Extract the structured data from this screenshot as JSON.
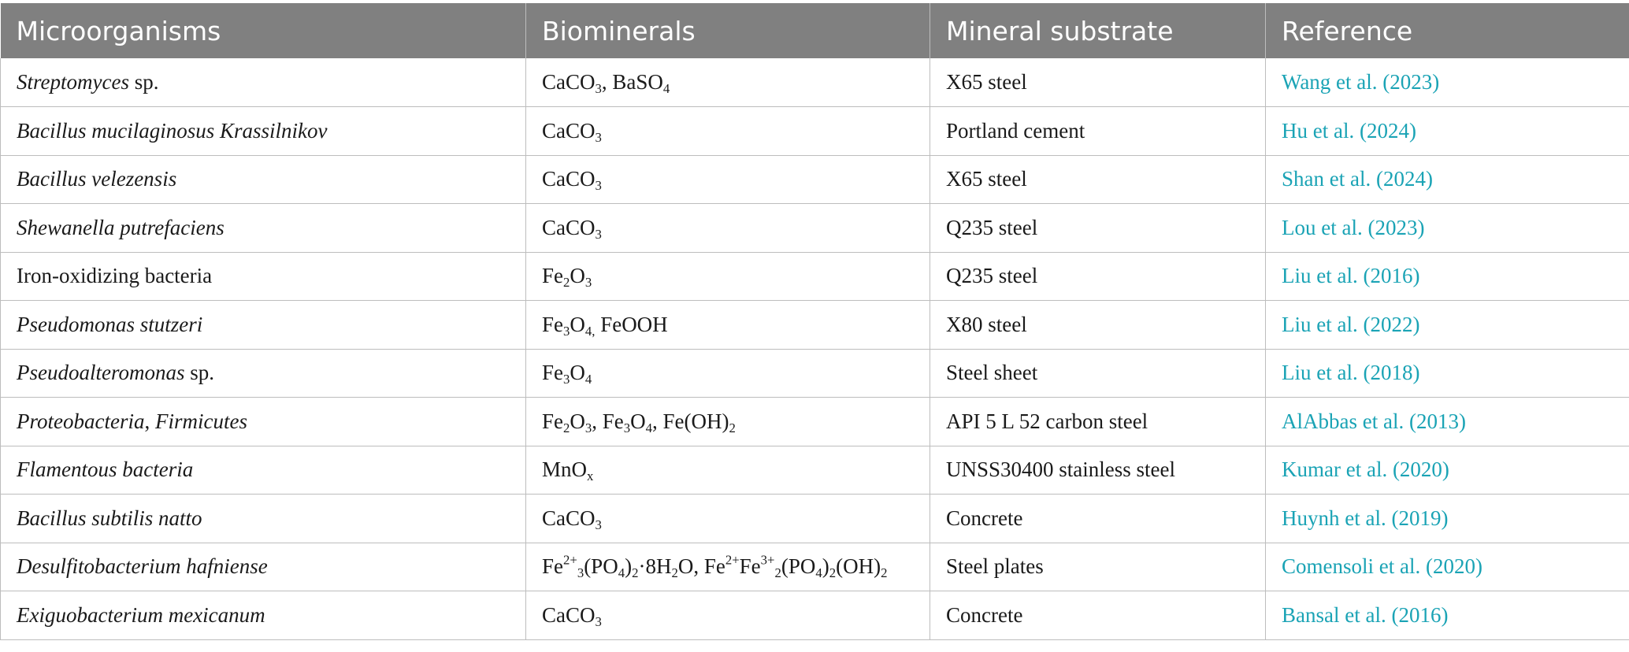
{
  "table": {
    "headers": [
      "Microorganisms",
      "Biominerals",
      "Mineral substrate",
      "Reference"
    ],
    "rows": [
      {
        "organism": [
          {
            "t": "Streptomyces",
            "i": true
          },
          {
            "t": " sp.",
            "i": false
          }
        ],
        "biominerals": [
          {
            "t": "CaCO"
          },
          {
            "t": "3",
            "s": "sub"
          },
          {
            "t": ", BaSO"
          },
          {
            "t": "4",
            "s": "sub"
          }
        ],
        "substrate": "X65 steel",
        "reference": "Wang et al. (2023)"
      },
      {
        "organism": [
          {
            "t": "Bacillus mucilaginosus Krassilnikov",
            "i": true
          }
        ],
        "biominerals": [
          {
            "t": "CaCO"
          },
          {
            "t": "3",
            "s": "sub"
          }
        ],
        "substrate": "Portland cement",
        "reference": "Hu et al. (2024)"
      },
      {
        "organism": [
          {
            "t": "Bacillus velezensis",
            "i": true
          }
        ],
        "biominerals": [
          {
            "t": "CaCO"
          },
          {
            "t": "3",
            "s": "sub"
          }
        ],
        "substrate": "X65 steel",
        "reference": "Shan et al. (2024)"
      },
      {
        "organism": [
          {
            "t": "Shewanella putrefaciens",
            "i": true
          }
        ],
        "biominerals": [
          {
            "t": "CaCO"
          },
          {
            "t": "3",
            "s": "sub"
          }
        ],
        "substrate": "Q235 steel",
        "reference": "Lou et al. (2023)"
      },
      {
        "organism": [
          {
            "t": "Iron-oxidizing bacteria",
            "i": false
          }
        ],
        "biominerals": [
          {
            "t": "Fe"
          },
          {
            "t": "2",
            "s": "sub"
          },
          {
            "t": "O"
          },
          {
            "t": "3",
            "s": "sub"
          }
        ],
        "substrate": "Q235 steel",
        "reference": "Liu et al. (2016)"
      },
      {
        "organism": [
          {
            "t": "Pseudomonas stutzeri",
            "i": true
          }
        ],
        "biominerals": [
          {
            "t": "Fe"
          },
          {
            "t": "3",
            "s": "sub"
          },
          {
            "t": "O"
          },
          {
            "t": "4,",
            "s": "sub"
          },
          {
            "t": " FeOOH"
          }
        ],
        "substrate": "X80 steel",
        "reference": "Liu et al. (2022)"
      },
      {
        "organism": [
          {
            "t": "Pseudoalteromonas",
            "i": true
          },
          {
            "t": " sp.",
            "i": false
          }
        ],
        "biominerals": [
          {
            "t": "Fe"
          },
          {
            "t": "3",
            "s": "sub"
          },
          {
            "t": "O"
          },
          {
            "t": "4",
            "s": "sub"
          }
        ],
        "substrate": "Steel sheet",
        "reference": "Liu et al. (2018)"
      },
      {
        "organism": [
          {
            "t": "Proteobacteria",
            "i": true
          },
          {
            "t": ", ",
            "i": false
          },
          {
            "t": "Firmicutes",
            "i": true
          }
        ],
        "biominerals": [
          {
            "t": "Fe"
          },
          {
            "t": "2",
            "s": "sub"
          },
          {
            "t": "O"
          },
          {
            "t": "3",
            "s": "sub"
          },
          {
            "t": ", Fe"
          },
          {
            "t": "3",
            "s": "sub"
          },
          {
            "t": "O"
          },
          {
            "t": "4",
            "s": "sub"
          },
          {
            "t": ", Fe(OH)"
          },
          {
            "t": "2",
            "s": "sub"
          }
        ],
        "substrate": "API 5 L 52 carbon steel",
        "reference": "AlAbbas et al. (2013)"
      },
      {
        "organism": [
          {
            "t": "Flamentous bacteria",
            "i": true
          }
        ],
        "biominerals": [
          {
            "t": "MnO"
          },
          {
            "t": "x",
            "s": "sub"
          }
        ],
        "substrate": "UNSS30400 stainless steel",
        "reference": "Kumar et al. (2020)"
      },
      {
        "organism": [
          {
            "t": "Bacillus subtilis natto",
            "i": true
          }
        ],
        "biominerals": [
          {
            "t": "CaCO"
          },
          {
            "t": "3",
            "s": "sub"
          }
        ],
        "substrate": "Concrete",
        "reference": "Huynh et al. (2019)"
      },
      {
        "organism": [
          {
            "t": "Desulfitobacterium hafniense",
            "i": true
          }
        ],
        "biominerals": [
          {
            "t": "Fe"
          },
          {
            "t": "2+",
            "s": "sup"
          },
          {
            "t": "3",
            "s": "sub"
          },
          {
            "t": "(PO"
          },
          {
            "t": "4",
            "s": "sub"
          },
          {
            "t": ")"
          },
          {
            "t": "2",
            "s": "sub"
          },
          {
            "t": "·8H"
          },
          {
            "t": "2",
            "s": "sub"
          },
          {
            "t": "O, Fe"
          },
          {
            "t": "2+",
            "s": "sup"
          },
          {
            "t": "Fe"
          },
          {
            "t": "3+",
            "s": "sup"
          },
          {
            "t": "2",
            "s": "sub"
          },
          {
            "t": "(PO"
          },
          {
            "t": "4",
            "s": "sub"
          },
          {
            "t": ")"
          },
          {
            "t": "2",
            "s": "sub"
          },
          {
            "t": "(OH)"
          },
          {
            "t": "2",
            "s": "sub"
          }
        ],
        "substrate": "Steel plates",
        "reference": "Comensoli et al. (2020)"
      },
      {
        "organism": [
          {
            "t": "Exiguobacterium mexicanum",
            "i": true
          }
        ],
        "biominerals": [
          {
            "t": "CaCO"
          },
          {
            "t": "3",
            "s": "sub"
          }
        ],
        "substrate": "Concrete",
        "reference": "Bansal et al. (2016)"
      }
    ]
  },
  "colors": {
    "header_bg": "#808080",
    "header_text": "#ffffff",
    "reference_link": "#1aa3b5",
    "grid_line": "#bdbdbd"
  }
}
